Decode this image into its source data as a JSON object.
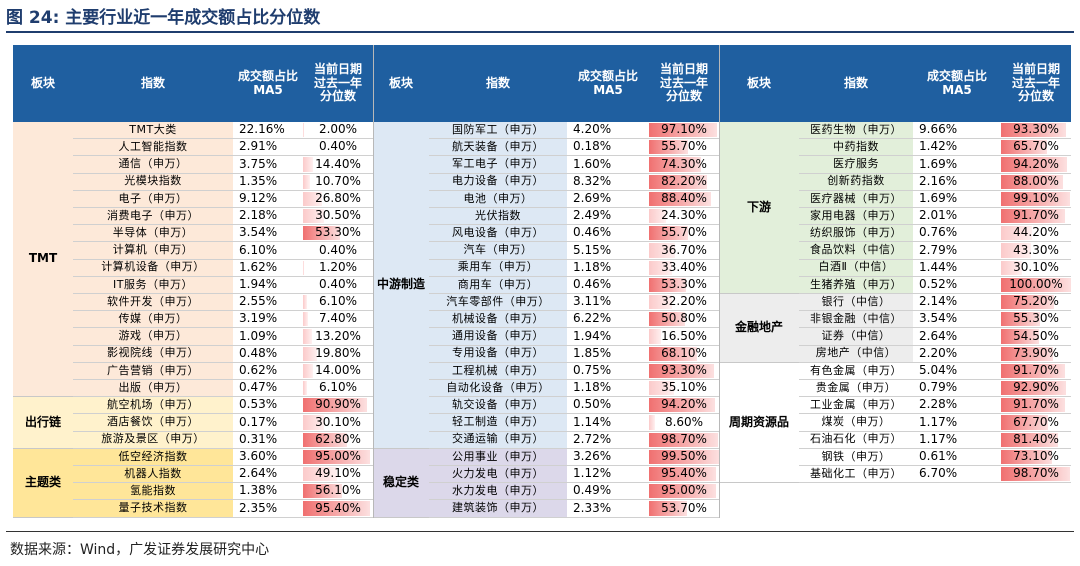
{
  "figure": {
    "title": "图 24: 主要行业近一年成交额占比分位数",
    "source": "数据来源：Wind，广发证券发展研究中心"
  },
  "headers": {
    "board": "板块",
    "index": "指数",
    "ratio_line1": "成交额占比",
    "ratio_line2": "MA5",
    "pct_line1": "当前日期",
    "pct_line2": "过去一年",
    "pct_line3": "分位数"
  },
  "colors": {
    "header_bg": "#1f5fa0",
    "tmt": "#fde9d9",
    "travel": "#fff2cc",
    "theme": "#ffe699",
    "midstream": "#dde8f4",
    "stable": "#dcd8ea",
    "downstream": "#e2efda",
    "finance": "#ededed",
    "cyclical": "#ffffff",
    "percentile_bar": "#f07070"
  },
  "sections": [
    {
      "groups": [
        {
          "name": "TMT",
          "color_key": "tmt",
          "rows": [
            {
              "name": "TMT大类",
              "ratio": "22.16%",
              "pct": "2.00%",
              "pct_value": 2.0
            },
            {
              "name": "人工智能指数",
              "ratio": "2.91%",
              "pct": "0.40%",
              "pct_value": 0.4
            },
            {
              "name": "通信（申万）",
              "ratio": "3.75%",
              "pct": "14.40%",
              "pct_value": 14.4
            },
            {
              "name": "光模块指数",
              "ratio": "1.35%",
              "pct": "10.70%",
              "pct_value": 10.7
            },
            {
              "name": "电子（申万）",
              "ratio": "9.12%",
              "pct": "26.80%",
              "pct_value": 26.8
            },
            {
              "name": "消费电子（申万）",
              "ratio": "2.18%",
              "pct": "30.50%",
              "pct_value": 30.5
            },
            {
              "name": "半导体（申万）",
              "ratio": "3.54%",
              "pct": "53.30%",
              "pct_value": 53.3
            },
            {
              "name": "计算机（申万）",
              "ratio": "6.10%",
              "pct": "0.40%",
              "pct_value": 0.4
            },
            {
              "name": "计算机设备（申万）",
              "ratio": "1.62%",
              "pct": "1.20%",
              "pct_value": 1.2
            },
            {
              "name": "IT服务（申万）",
              "ratio": "1.94%",
              "pct": "0.40%",
              "pct_value": 0.4
            },
            {
              "name": "软件开发（申万）",
              "ratio": "2.55%",
              "pct": "6.10%",
              "pct_value": 6.1
            },
            {
              "name": "传媒（申万）",
              "ratio": "3.19%",
              "pct": "7.40%",
              "pct_value": 7.4
            },
            {
              "name": "游戏（申万）",
              "ratio": "1.09%",
              "pct": "13.20%",
              "pct_value": 13.2
            },
            {
              "name": "影视院线（申万）",
              "ratio": "0.48%",
              "pct": "19.80%",
              "pct_value": 19.8
            },
            {
              "name": "广告营销（申万）",
              "ratio": "0.62%",
              "pct": "14.00%",
              "pct_value": 14.0
            },
            {
              "name": "出版（申万）",
              "ratio": "0.47%",
              "pct": "6.10%",
              "pct_value": 6.1
            }
          ]
        },
        {
          "name": "出行链",
          "color_key": "travel",
          "rows": [
            {
              "name": "航空机场（申万）",
              "ratio": "0.53%",
              "pct": "90.90%",
              "pct_value": 90.9
            },
            {
              "name": "酒店餐饮（申万）",
              "ratio": "0.17%",
              "pct": "30.10%",
              "pct_value": 30.1
            },
            {
              "name": "旅游及景区（申万）",
              "ratio": "0.31%",
              "pct": "62.80%",
              "pct_value": 62.8
            }
          ]
        },
        {
          "name": "主题类",
          "color_key": "theme",
          "rows": [
            {
              "name": "低空经济指数",
              "ratio": "3.60%",
              "pct": "95.00%",
              "pct_value": 95.0
            },
            {
              "name": "机器人指数",
              "ratio": "2.64%",
              "pct": "49.10%",
              "pct_value": 49.1
            },
            {
              "name": "氢能指数",
              "ratio": "1.38%",
              "pct": "56.10%",
              "pct_value": 56.1
            },
            {
              "name": "量子技术指数",
              "ratio": "2.35%",
              "pct": "95.40%",
              "pct_value": 95.4
            }
          ]
        }
      ]
    },
    {
      "groups": [
        {
          "name": "中游制造",
          "color_key": "midstream",
          "rows": [
            {
              "name": "国防军工（申万）",
              "ratio": "4.20%",
              "pct": "97.10%",
              "pct_value": 97.1
            },
            {
              "name": "航天装备（申万）",
              "ratio": "0.18%",
              "pct": "55.70%",
              "pct_value": 55.7
            },
            {
              "name": "军工电子（申万）",
              "ratio": "1.60%",
              "pct": "74.30%",
              "pct_value": 74.3
            },
            {
              "name": "电力设备（申万）",
              "ratio": "8.32%",
              "pct": "82.20%",
              "pct_value": 82.2
            },
            {
              "name": "电池（申万）",
              "ratio": "2.69%",
              "pct": "88.40%",
              "pct_value": 88.4
            },
            {
              "name": "光伏指数",
              "ratio": "2.49%",
              "pct": "24.30%",
              "pct_value": 24.3
            },
            {
              "name": "风电设备（申万）",
              "ratio": "0.46%",
              "pct": "55.70%",
              "pct_value": 55.7
            },
            {
              "name": "汽车（申万）",
              "ratio": "5.15%",
              "pct": "36.70%",
              "pct_value": 36.7
            },
            {
              "name": "乘用车（申万）",
              "ratio": "1.18%",
              "pct": "33.40%",
              "pct_value": 33.4
            },
            {
              "name": "商用车（申万）",
              "ratio": "0.46%",
              "pct": "53.30%",
              "pct_value": 53.3
            },
            {
              "name": "汽车零部件（申万）",
              "ratio": "3.11%",
              "pct": "32.20%",
              "pct_value": 32.2
            },
            {
              "name": "机械设备（申万）",
              "ratio": "6.22%",
              "pct": "50.80%",
              "pct_value": 50.8
            },
            {
              "name": "通用设备（申万）",
              "ratio": "1.94%",
              "pct": "16.50%",
              "pct_value": 16.5
            },
            {
              "name": "专用设备（申万）",
              "ratio": "1.85%",
              "pct": "68.10%",
              "pct_value": 68.1
            },
            {
              "name": "工程机械（申万）",
              "ratio": "0.75%",
              "pct": "93.30%",
              "pct_value": 93.3
            },
            {
              "name": "自动化设备（申万）",
              "ratio": "1.18%",
              "pct": "35.10%",
              "pct_value": 35.1
            },
            {
              "name": "轨交设备（申万）",
              "ratio": "0.50%",
              "pct": "94.20%",
              "pct_value": 94.2
            },
            {
              "name": "轻工制造（申万）",
              "ratio": "1.14%",
              "pct": "8.60%",
              "pct_value": 8.6
            },
            {
              "name": "交通运输（申万）",
              "ratio": "2.72%",
              "pct": "98.70%",
              "pct_value": 98.7
            }
          ]
        },
        {
          "name": "稳定类",
          "color_key": "stable",
          "rows": [
            {
              "name": "公用事业（申万）",
              "ratio": "3.26%",
              "pct": "99.50%",
              "pct_value": 99.5
            },
            {
              "name": "火力发电（申万）",
              "ratio": "1.12%",
              "pct": "95.40%",
              "pct_value": 95.4
            },
            {
              "name": "水力发电（申万）",
              "ratio": "0.49%",
              "pct": "95.00%",
              "pct_value": 95.0
            },
            {
              "name": "建筑装饰（申万）",
              "ratio": "2.33%",
              "pct": "53.70%",
              "pct_value": 53.7
            }
          ]
        }
      ]
    },
    {
      "groups": [
        {
          "name": "下游",
          "color_key": "downstream",
          "rows": [
            {
              "name": "医药生物（申万）",
              "ratio": "9.66%",
              "pct": "93.30%",
              "pct_value": 93.3
            },
            {
              "name": "中药指数",
              "ratio": "1.42%",
              "pct": "65.70%",
              "pct_value": 65.7
            },
            {
              "name": "医疗服务",
              "ratio": "1.69%",
              "pct": "94.20%",
              "pct_value": 94.2
            },
            {
              "name": "创新药指数",
              "ratio": "2.16%",
              "pct": "88.00%",
              "pct_value": 88.0
            },
            {
              "name": "医疗器械（申万）",
              "ratio": "1.69%",
              "pct": "99.10%",
              "pct_value": 99.1
            },
            {
              "name": "家用电器（申万）",
              "ratio": "2.01%",
              "pct": "91.70%",
              "pct_value": 91.7
            },
            {
              "name": "纺织服饰（申万）",
              "ratio": "0.76%",
              "pct": "44.20%",
              "pct_value": 44.2
            },
            {
              "name": "食品饮料（中信）",
              "ratio": "2.79%",
              "pct": "43.30%",
              "pct_value": 43.3
            },
            {
              "name": "白酒Ⅱ（中信）",
              "ratio": "1.44%",
              "pct": "30.10%",
              "pct_value": 30.1
            },
            {
              "name": "生猪养殖（申万）",
              "ratio": "0.52%",
              "pct": "100.00%",
              "pct_value": 100.0
            }
          ]
        },
        {
          "name": "金融地产",
          "color_key": "finance",
          "rows": [
            {
              "name": "银行（中信）",
              "ratio": "2.14%",
              "pct": "75.20%",
              "pct_value": 75.2
            },
            {
              "name": "非银金融（中信）",
              "ratio": "3.54%",
              "pct": "55.30%",
              "pct_value": 55.3
            },
            {
              "name": "证券（中信）",
              "ratio": "2.64%",
              "pct": "54.50%",
              "pct_value": 54.5
            },
            {
              "name": "房地产（中信）",
              "ratio": "2.20%",
              "pct": "73.90%",
              "pct_value": 73.9
            }
          ]
        },
        {
          "name": "周期资源品",
          "color_key": "cyclical",
          "rows": [
            {
              "name": "有色金属（申万）",
              "ratio": "5.04%",
              "pct": "91.70%",
              "pct_value": 91.7
            },
            {
              "name": "贵金属（申万）",
              "ratio": "0.79%",
              "pct": "92.90%",
              "pct_value": 92.9
            },
            {
              "name": "工业金属（申万）",
              "ratio": "2.28%",
              "pct": "91.70%",
              "pct_value": 91.7
            },
            {
              "name": "煤炭（申万）",
              "ratio": "1.17%",
              "pct": "67.70%",
              "pct_value": 67.7
            },
            {
              "name": "石油石化（申万）",
              "ratio": "1.17%",
              "pct": "81.40%",
              "pct_value": 81.4
            },
            {
              "name": "钢铁（申万）",
              "ratio": "0.61%",
              "pct": "73.10%",
              "pct_value": 73.1
            },
            {
              "name": "基础化工（申万）",
              "ratio": "6.70%",
              "pct": "98.70%",
              "pct_value": 98.7
            }
          ]
        }
      ]
    }
  ]
}
